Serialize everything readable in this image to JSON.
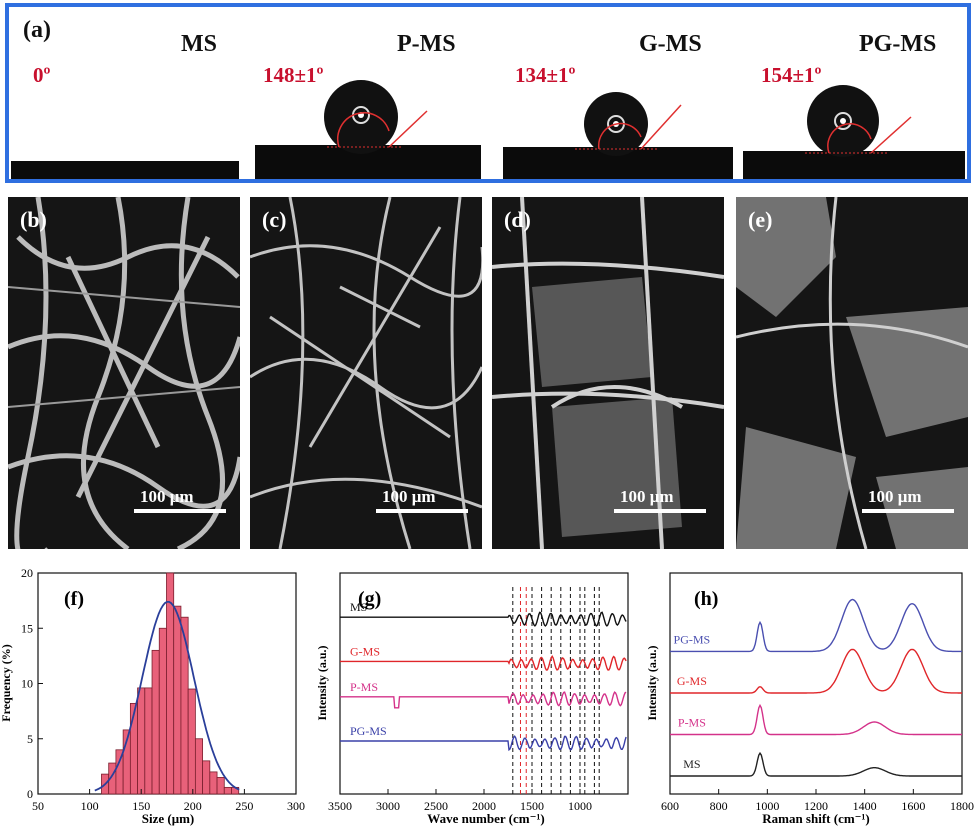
{
  "panel_a": {
    "label": "(a)",
    "samples": [
      {
        "name": "MS",
        "angle": "0º"
      },
      {
        "name": "P-MS",
        "angle": "148±1º"
      },
      {
        "name": "G-MS",
        "angle": "134±1º"
      },
      {
        "name": "PG-MS",
        "angle": "154±1º"
      }
    ]
  },
  "sem_panels": [
    {
      "label": "(b)",
      "scale": "100 μm"
    },
    {
      "label": "(c)",
      "scale": "100 μm"
    },
    {
      "label": "(d)",
      "scale": "100 μm"
    },
    {
      "label": "(e)",
      "scale": "100 μm"
    }
  ],
  "colors": {
    "frame": "#2f6fe0",
    "angle_text": "#c8102e",
    "hist_bar": "#e8617a",
    "fit": "#2a3f9a"
  },
  "chart_data": [
    {
      "type": "bar",
      "panel_label": "(f)",
      "xlabel": "Size (μm)",
      "ylabel": "Frequency (%)",
      "xlim": [
        50,
        300
      ],
      "ylim": [
        0,
        20
      ],
      "xticks": [
        50,
        100,
        150,
        200,
        250,
        300
      ],
      "yticks": [
        0,
        5,
        10,
        15,
        20
      ],
      "bin_centers": [
        115,
        122,
        129,
        136,
        143,
        150,
        157,
        164,
        171,
        178,
        185,
        192,
        199,
        206,
        213,
        220,
        227,
        234,
        241
      ],
      "values": [
        1.8,
        2.8,
        4.0,
        5.8,
        8.2,
        9.6,
        9.6,
        13.0,
        15.0,
        20.0,
        17.0,
        16.0,
        9.5,
        5.0,
        3.0,
        2.0,
        1.5,
        0.6,
        0.6
      ],
      "fit": {
        "type": "gaussian",
        "mean": 176,
        "sigma": 25,
        "peak": 17.4
      }
    },
    {
      "type": "line",
      "panel_label": "(g)",
      "xlabel": "Wave number (cm⁻¹)",
      "ylabel": "Intensity (a.u.)",
      "xlim": [
        3500,
        500
      ],
      "xticks": [
        3500,
        3000,
        2500,
        2000,
        1500,
        1000
      ],
      "reference_lines_black": [
        1700,
        1500,
        1400,
        1300,
        1200,
        1100,
        1000,
        950,
        850,
        800
      ],
      "reference_lines_red": [
        1620,
        1560
      ],
      "series": [
        {
          "name": "MS",
          "color": "#111111",
          "offset": 4.0
        },
        {
          "name": "G-MS",
          "color": "#e0262a",
          "offset": 3.0
        },
        {
          "name": "P-MS",
          "color": "#d4328a",
          "offset": 2.2
        },
        {
          "name": "PG-MS",
          "color": "#3a40a8",
          "offset": 1.2
        }
      ]
    },
    {
      "type": "line",
      "panel_label": "(h)",
      "xlabel": "Raman shift (cm⁻¹)",
      "ylabel": "Intensity (a.u.)",
      "xlim": [
        600,
        1800
      ],
      "xticks": [
        600,
        800,
        1000,
        1200,
        1400,
        1600,
        1800
      ],
      "series": [
        {
          "name": "PG-MS",
          "color": "#4a4fb0",
          "offset": 3.0,
          "peaks": [
            [
              970,
              0.7
            ],
            [
              1350,
              1.25
            ],
            [
              1595,
              1.15
            ]
          ]
        },
        {
          "name": "G-MS",
          "color": "#e0262a",
          "offset": 2.0,
          "peaks": [
            [
              970,
              0.15
            ],
            [
              1350,
              1.05
            ],
            [
              1595,
              1.05
            ]
          ]
        },
        {
          "name": "P-MS",
          "color": "#d4328a",
          "offset": 1.0,
          "peaks": [
            [
              970,
              0.7
            ],
            [
              1440,
              0.3
            ]
          ]
        },
        {
          "name": "MS",
          "color": "#222222",
          "offset": 0.0,
          "peaks": [
            [
              970,
              0.55
            ],
            [
              1440,
              0.2
            ]
          ]
        }
      ]
    }
  ]
}
